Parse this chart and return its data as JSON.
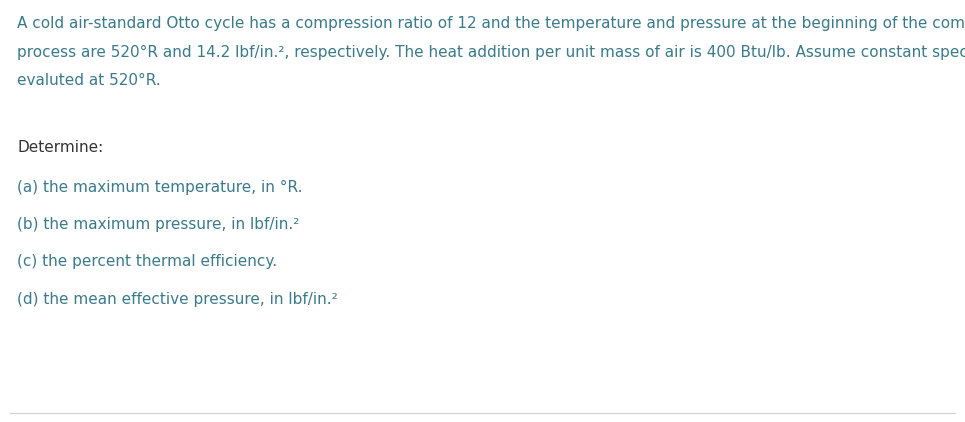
{
  "background_color": "#ffffff",
  "border_color": "#d0d0d0",
  "text_color_black": "#333333",
  "text_color_teal": "#3a7a8a",
  "paragraph_line1": "A cold air-standard Otto cycle has a compression ratio of 12 and the temperature and pressure at the beginning of the compression",
  "paragraph_line2": "process are 520°R and 14.2 lbf/in.², respectively. The heat addition per unit mass of air is 400 Btu/lb. Assume constant specific heats",
  "paragraph_line3": "evaluted at 520°R.",
  "determine_label": "Determine:",
  "items": [
    "(a) the maximum temperature, in °R.",
    "(b) the maximum pressure, in lbf/in.²",
    "(c) the percent thermal efficiency.",
    "(d) the mean effective pressure, in lbf/in.²"
  ],
  "para_fontsize": 11.0,
  "determine_fontsize": 11.0,
  "item_fontsize": 11.0,
  "fig_width": 9.65,
  "fig_height": 4.22,
  "dpi": 100
}
